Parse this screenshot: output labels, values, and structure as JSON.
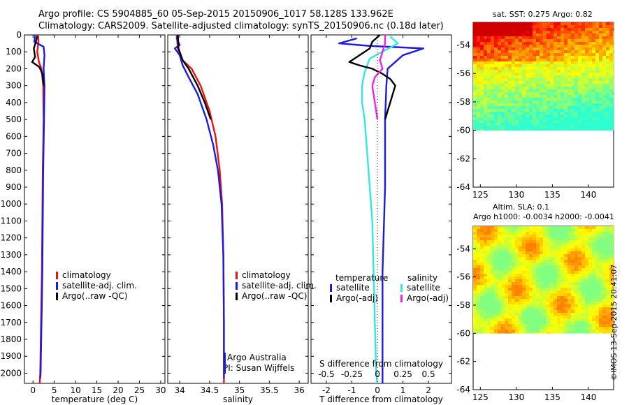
{
  "header": {
    "line1": "Argo profile: CS 5904885_60 05-Sep-2015 20150906_1017 58.128S 133.962E",
    "line2": "Climatology: CARS2009. Satellite-adjusted climatology: synTS_20150906.nc (0.18d later)"
  },
  "stamp": "©IMOS 13-Sep-2015 20:41:07",
  "colors": {
    "climatology": "#ee1111",
    "satellite": "#1b1be0",
    "argo": "#000000",
    "sat_salinity": "#33e6e6",
    "argo_salinity_adj": "#ee22ee"
  },
  "chart_data": [
    {
      "type": "line",
      "title": "",
      "xlabel": "temperature (deg C)",
      "ylabel": "",
      "xlim": [
        -2,
        31
      ],
      "ylim": [
        2060,
        0
      ],
      "x_ticks": [
        "0",
        "5",
        "10",
        "15",
        "20",
        "25",
        "30"
      ],
      "x_tick_values": [
        0,
        5,
        10,
        15,
        20,
        25,
        30
      ],
      "y_ticks": [
        "0",
        "100",
        "200",
        "300",
        "400",
        "500",
        "600",
        "700",
        "800",
        "900",
        "1000",
        "1100",
        "1200",
        "1300",
        "1400",
        "1500",
        "1600",
        "1700",
        "1800",
        "1900",
        "2000"
      ],
      "legend": [
        "climatology",
        "satellite-adj. clim.",
        "Argo(..raw -QC)"
      ],
      "series": [
        {
          "name": "climatology",
          "color": "#ee1111",
          "points": [
            [
              1.2,
              0
            ],
            [
              1.3,
              40
            ],
            [
              1.0,
              100
            ],
            [
              1.4,
              160
            ],
            [
              2.0,
              200
            ],
            [
              2.4,
              300
            ],
            [
              2.5,
              500
            ],
            [
              2.3,
              800
            ],
            [
              2.2,
              1100
            ],
            [
              2.1,
              1400
            ],
            [
              1.9,
              1700
            ],
            [
              1.7,
              2000
            ],
            [
              1.6,
              2060
            ]
          ]
        },
        {
          "name": "satellite-adj. clim.",
          "color": "#1b1be0",
          "points": [
            [
              0.5,
              0
            ],
            [
              0.3,
              40
            ],
            [
              2.5,
              70
            ],
            [
              2.7,
              120
            ],
            [
              2.5,
              200
            ],
            [
              2.7,
              300
            ],
            [
              2.6,
              500
            ],
            [
              2.4,
              800
            ],
            [
              2.3,
              1100
            ],
            [
              2.2,
              1400
            ],
            [
              2.0,
              1700
            ],
            [
              1.8,
              2000
            ],
            [
              1.7,
              2030
            ]
          ]
        },
        {
          "name": "Argo(..raw -QC)",
          "color": "#000000",
          "points": [
            [
              1.0,
              5
            ],
            [
              0.7,
              40
            ],
            [
              0.2,
              80
            ],
            [
              0.5,
              130
            ],
            [
              -0.2,
              160
            ],
            [
              1.5,
              190
            ],
            [
              2.2,
              230
            ],
            [
              2.5,
              300
            ]
          ]
        }
      ]
    },
    {
      "type": "line",
      "title": "",
      "xlabel": "salinity",
      "ylabel": "",
      "xlim": [
        33.8,
        36.15
      ],
      "ylim": [
        2060,
        0
      ],
      "x_ticks": [
        "34",
        "34.5",
        "35",
        "35.5",
        "36"
      ],
      "x_tick_values": [
        34,
        34.5,
        35,
        35.5,
        36
      ],
      "legend": [
        "climatology",
        "satellite-adj. clim.",
        "Argo(..raw -QC)"
      ],
      "annotations": [
        "Argo Australia",
        "PI: Susan Wijffels"
      ],
      "series": [
        {
          "name": "climatology",
          "color": "#ee1111",
          "points": [
            [
              33.95,
              0
            ],
            [
              33.97,
              80
            ],
            [
              34.05,
              150
            ],
            [
              34.2,
              200
            ],
            [
              34.35,
              300
            ],
            [
              34.5,
              450
            ],
            [
              34.6,
              600
            ],
            [
              34.67,
              800
            ],
            [
              34.71,
              1000
            ],
            [
              34.73,
              1300
            ],
            [
              34.74,
              1700
            ],
            [
              34.74,
              2060
            ]
          ]
        },
        {
          "name": "satellite-adj. clim.",
          "color": "#1b1be0",
          "points": [
            [
              33.97,
              0
            ],
            [
              33.95,
              20
            ],
            [
              34.0,
              60
            ],
            [
              33.92,
              80
            ],
            [
              34.0,
              120
            ],
            [
              34.05,
              180
            ],
            [
              34.15,
              250
            ],
            [
              34.3,
              350
            ],
            [
              34.45,
              500
            ],
            [
              34.56,
              650
            ],
            [
              34.64,
              800
            ],
            [
              34.7,
              1000
            ],
            [
              34.73,
              1300
            ],
            [
              34.74,
              1700
            ],
            [
              34.74,
              2030
            ]
          ]
        },
        {
          "name": "Argo(..raw -QC)",
          "color": "#000000",
          "points": [
            [
              33.97,
              0
            ],
            [
              33.98,
              80
            ],
            [
              34.05,
              150
            ],
            [
              34.15,
              200
            ],
            [
              34.3,
              300
            ],
            [
              34.42,
              400
            ],
            [
              34.52,
              500
            ]
          ]
        }
      ]
    },
    {
      "type": "line",
      "title": "",
      "xlabel": "T difference from climatology",
      "xlabel2": "S difference from climatology",
      "ylabel": "",
      "xlim": [
        -2.6,
        2.9
      ],
      "ylim": [
        2060,
        0
      ],
      "x_ticks": [
        "-2",
        "-1",
        "0",
        "1",
        "2"
      ],
      "x_tick_values": [
        -2,
        -1,
        0,
        1,
        2
      ],
      "x2_ticks": [
        "-0.5",
        "-0.25",
        "0",
        "0.25",
        "0.5"
      ],
      "x2_tick_values": [
        -2,
        -1,
        0,
        1,
        2
      ],
      "legend_headers": [
        "temperature",
        "salinity"
      ],
      "legend": [
        "satellite",
        "Argo(-adj)",
        "satellite",
        "Argo(-adj)"
      ],
      "series": [
        {
          "name": "satellite",
          "group": "temperature",
          "color": "#1b1be0",
          "points": [
            [
              -0.8,
              20
            ],
            [
              -1.5,
              50
            ],
            [
              -0.3,
              65
            ],
            [
              1.8,
              80
            ],
            [
              1.0,
              120
            ],
            [
              0.4,
              200
            ],
            [
              0.35,
              300
            ],
            [
              0.3,
              500
            ],
            [
              0.3,
              900
            ],
            [
              0.2,
              1400
            ],
            [
              0.2,
              1700
            ],
            [
              0.2,
              2060
            ]
          ]
        },
        {
          "name": "satellite",
          "group": "salinity",
          "color": "#33e6e6",
          "points": [
            [
              0.5,
              10
            ],
            [
              0.8,
              50
            ],
            [
              -0.3,
              140
            ],
            [
              -0.5,
              220
            ],
            [
              -0.6,
              300
            ],
            [
              -0.6,
              400
            ],
            [
              -0.5,
              500
            ],
            [
              -0.45,
              600
            ],
            [
              -0.4,
              700
            ],
            [
              -0.35,
              800
            ],
            [
              -0.3,
              900
            ],
            [
              -0.2,
              1100
            ],
            [
              -0.15,
              1400
            ],
            [
              -0.1,
              1700
            ],
            [
              -0.05,
              2000
            ],
            [
              0.0,
              2060
            ]
          ]
        },
        {
          "name": "Argo(-adj)",
          "group": "temperature",
          "color": "#000000",
          "points": [
            [
              0.1,
              0
            ],
            [
              -0.2,
              40
            ],
            [
              -0.3,
              80
            ],
            [
              -1.1,
              160
            ],
            [
              -0.7,
              180
            ],
            [
              -0.2,
              200
            ],
            [
              0.2,
              230
            ],
            [
              0.5,
              260
            ],
            [
              0.7,
              300
            ],
            [
              0.5,
              400
            ],
            [
              0.3,
              500
            ]
          ]
        },
        {
          "name": "Argo(-adj)",
          "group": "salinity",
          "color": "#ee22ee",
          "points": [
            [
              0.3,
              0
            ],
            [
              0.3,
              50
            ],
            [
              0.1,
              150
            ],
            [
              0.2,
              200
            ],
            [
              -0.1,
              250
            ],
            [
              -0.2,
              300
            ],
            [
              -0.1,
              400
            ],
            [
              0.0,
              500
            ]
          ]
        }
      ]
    },
    {
      "type": "heatmap",
      "title": "sat. SST: 0.275 Argo: 0.82",
      "x_ticks": [
        "125",
        "130",
        "135",
        "140"
      ],
      "x_tick_values": [
        125,
        130,
        135,
        140
      ],
      "y_ticks": [
        "-54",
        "-56",
        "-58",
        "-60",
        "-62",
        "-64"
      ],
      "y_tick_values": [
        -54,
        -56,
        -58,
        -60,
        -62,
        -64
      ],
      "xlim": [
        124,
        143.5
      ],
      "ylim": [
        -64,
        -52.4
      ],
      "data_ylim": [
        -60,
        -52.4
      ],
      "colorscheme": "jet"
    },
    {
      "type": "heatmap",
      "title": "Altim. SLA: 0.1",
      "subtitle": "Argo h1000: -0.0034 h2000: -0.0041",
      "x_ticks": [
        "125",
        "130",
        "135",
        "140"
      ],
      "x_tick_values": [
        125,
        130,
        135,
        140
      ],
      "y_ticks": [
        "-54",
        "-56",
        "-58",
        "-60",
        "-62",
        "-64"
      ],
      "y_tick_values": [
        -54,
        -56,
        -58,
        -60,
        -62,
        -64
      ],
      "xlim": [
        124,
        143.5
      ],
      "ylim": [
        -64,
        -52.4
      ],
      "data_ylim": [
        -60,
        -52.4
      ],
      "colorscheme": "jet"
    }
  ]
}
